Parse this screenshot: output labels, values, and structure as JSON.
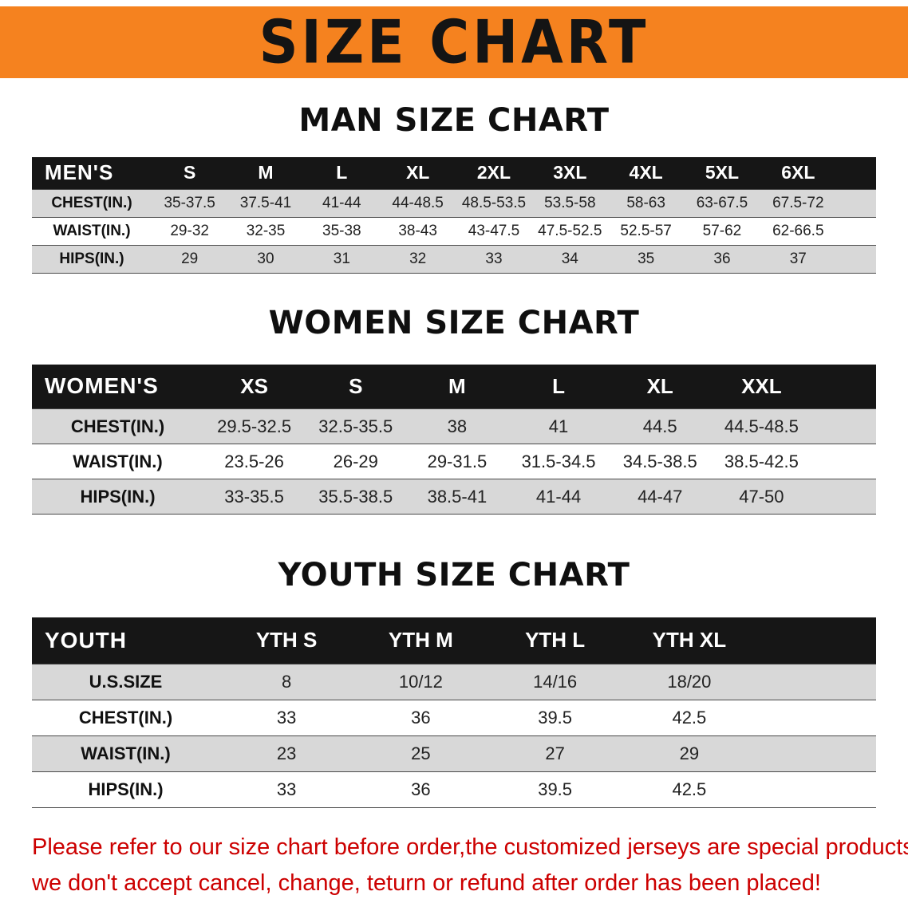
{
  "banner": {
    "title": "SIZE CHART",
    "bg_color": "#f5821f"
  },
  "sections": [
    {
      "id": "men",
      "heading": "MAN SIZE CHART",
      "table": {
        "header": [
          "MEN'S",
          "S",
          "M",
          "L",
          "XL",
          "2XL",
          "3XL",
          "4XL",
          "5XL",
          "6XL"
        ],
        "rows": [
          [
            "CHEST(IN.)",
            "35-37.5",
            "37.5-41",
            "41-44",
            "44-48.5",
            "48.5-53.5",
            "53.5-58",
            "58-63",
            "63-67.5",
            "67.5-72"
          ],
          [
            "WAIST(IN.)",
            "29-32",
            "32-35",
            "35-38",
            "38-43",
            "43-47.5",
            "47.5-52.5",
            "52.5-57",
            "57-62",
            "62-66.5"
          ],
          [
            "HIPS(IN.)",
            "29",
            "30",
            "31",
            "32",
            "33",
            "34",
            "35",
            "36",
            "37"
          ]
        ]
      }
    },
    {
      "id": "women",
      "heading": "WOMEN SIZE CHART",
      "table": {
        "header": [
          "WOMEN'S",
          "XS",
          "S",
          "M",
          "L",
          "XL",
          "XXL"
        ],
        "rows": [
          [
            "CHEST(IN.)",
            "29.5-32.5",
            "32.5-35.5",
            "38",
            "41",
            "44.5",
            "44.5-48.5"
          ],
          [
            "WAIST(IN.)",
            "23.5-26",
            "26-29",
            "29-31.5",
            "31.5-34.5",
            "34.5-38.5",
            "38.5-42.5"
          ],
          [
            "HIPS(IN.)",
            "33-35.5",
            "35.5-38.5",
            "38.5-41",
            "41-44",
            "44-47",
            "47-50"
          ]
        ]
      }
    },
    {
      "id": "youth",
      "heading": "YOUTH SIZE CHART",
      "table": {
        "header": [
          "YOUTH",
          "YTH S",
          "YTH M",
          "YTH L",
          "YTH XL"
        ],
        "rows": [
          [
            "U.S.SIZE",
            "8",
            "10/12",
            "14/16",
            "18/20"
          ],
          [
            "CHEST(IN.)",
            "33",
            "36",
            "39.5",
            "42.5"
          ],
          [
            "WAIST(IN.)",
            "23",
            "25",
            "27",
            "29"
          ],
          [
            "HIPS(IN.)",
            "33",
            "36",
            "39.5",
            "42.5"
          ]
        ]
      }
    }
  ],
  "footer": {
    "color": "#cc0000",
    "lines": [
      "Please refer to our size chart before order,the customized jerseys are special products,",
      "we don't accept cancel, change, teturn or refund after order has been placed!"
    ]
  }
}
